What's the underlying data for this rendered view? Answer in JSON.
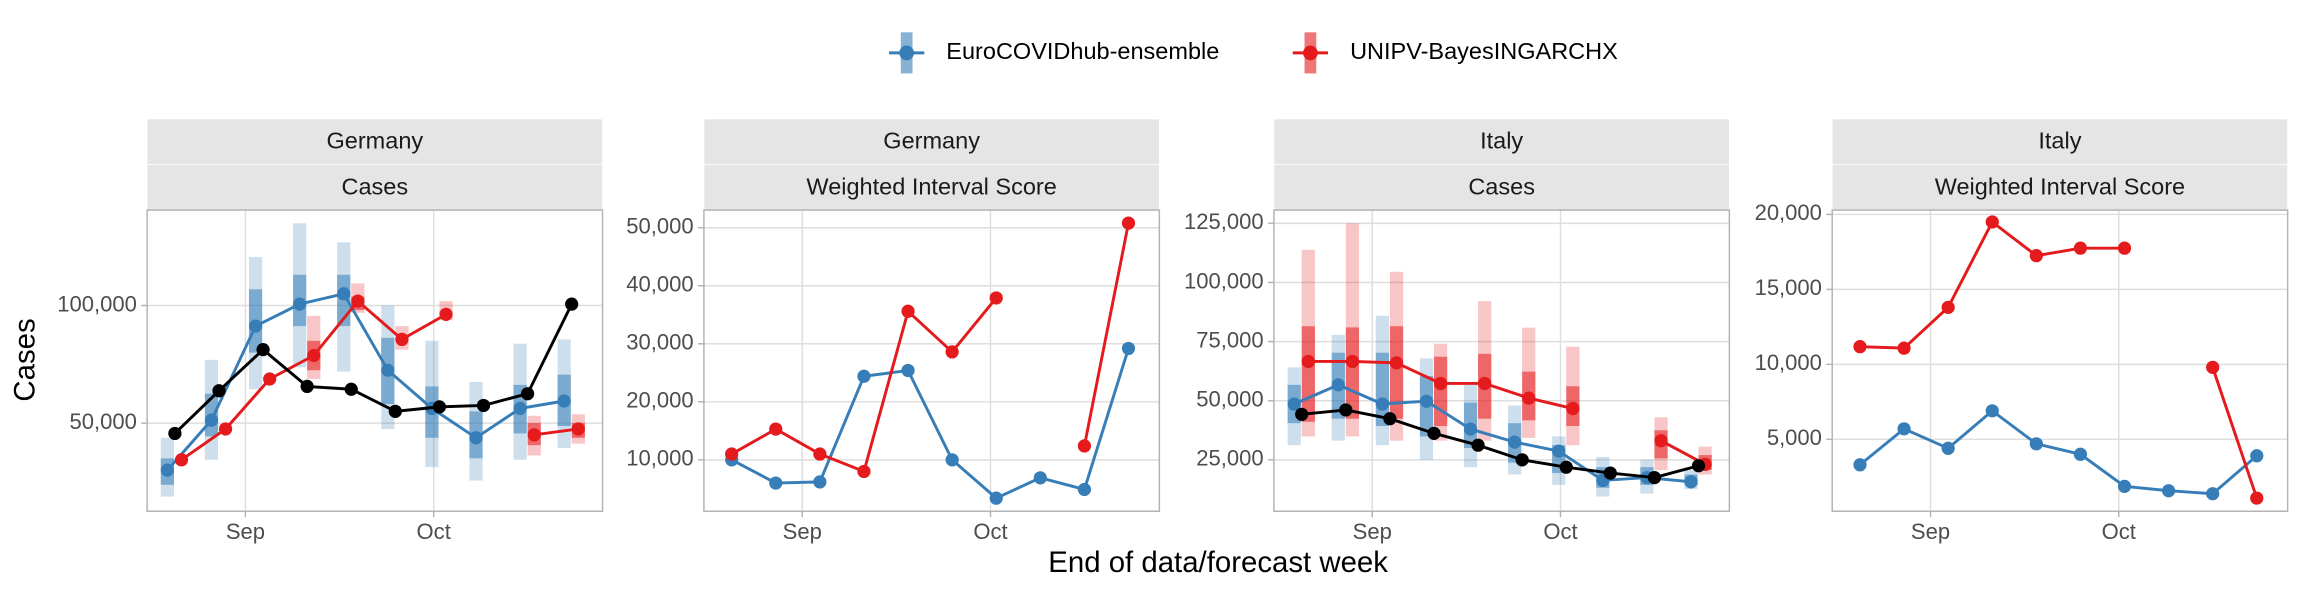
{
  "xlabel": "End of data/forecast week",
  "chart_data": [
    {
      "type": "line",
      "strip": [
        "Germany",
        "Cases"
      ],
      "ylabel": "Cases",
      "dodge": true,
      "grid": true,
      "categories": [
        null,
        null,
        null,
        null,
        null,
        null,
        null,
        null,
        null,
        null
      ],
      "xlim": [
        -0.63,
        9.7
      ],
      "xticks": [
        {
          "value": 1.6,
          "label": "Sep"
        },
        {
          "value": 5.87,
          "label": "Oct"
        }
      ],
      "ylim": [
        12500,
        140600
      ],
      "yticks": [
        {
          "value": 50000,
          "label": "50,000"
        },
        {
          "value": 100000,
          "label": "100,000"
        }
      ],
      "series": [
        {
          "name": "EuroCOVIDhub-ensemble",
          "color": "#377EB8",
          "values": [
            30000,
            51250,
            91250,
            100600,
            105000,
            72500,
            56250,
            43750,
            56250,
            59400
          ],
          "outer": [
            [
              18750,
              43750
            ],
            [
              34400,
              76900
            ],
            [
              64400,
              120600
            ],
            [
              73750,
              135000
            ],
            [
              71900,
              126900
            ],
            [
              47500,
              100000
            ],
            [
              31250,
              85000
            ],
            [
              25600,
              67500
            ],
            [
              34400,
              83750
            ],
            [
              39400,
              85600
            ]
          ],
          "inner": [
            [
              23750,
              35000
            ],
            [
              44400,
              62500
            ],
            [
              80000,
              106900
            ],
            [
              91250,
              113100
            ],
            [
              91250,
              113100
            ],
            [
              58100,
              86250
            ],
            [
              43750,
              65600
            ],
            [
              35000,
              55000
            ],
            [
              45600,
              66250
            ],
            [
              48750,
              70600
            ]
          ]
        },
        {
          "name": "UNIPV-BayesINGARCHX",
          "color": "#E41A1C",
          "values": [
            34400,
            47500,
            68750,
            78750,
            101900,
            85600,
            96250,
            null,
            45000,
            47500
          ],
          "outer": [
            null,
            null,
            null,
            [
              68750,
              95600
            ],
            [
              96900,
              109400
            ],
            [
              81250,
              91250
            ],
            [
              93750,
              101900
            ],
            null,
            [
              36250,
              53100
            ],
            [
              41250,
              53750
            ]
          ],
          "inner": [
            null,
            null,
            null,
            [
              72500,
              85000
            ],
            [
              98100,
              103800
            ],
            null,
            null,
            null,
            [
              40600,
              50000
            ],
            [
              43750,
              50000
            ]
          ]
        },
        {
          "color": "#000000",
          "values": [
            45600,
            63750,
            81250,
            65600,
            64400,
            55000,
            56900,
            57500,
            62500,
            100600
          ]
        }
      ]
    },
    {
      "type": "line",
      "strip": [
        "Germany",
        "Weighted Interval Score"
      ],
      "dodge": false,
      "grid": true,
      "categories": [
        null,
        null,
        null,
        null,
        null,
        null,
        null,
        null,
        null,
        null
      ],
      "xlim": [
        -0.63,
        9.7
      ],
      "xticks": [
        {
          "value": 1.6,
          "label": "Sep"
        },
        {
          "value": 5.87,
          "label": "Oct"
        }
      ],
      "ylim": [
        1140,
        53040
      ],
      "yticks": [
        {
          "value": 10000,
          "label": "10,000"
        },
        {
          "value": 20000,
          "label": "20,000"
        },
        {
          "value": 30000,
          "label": "30,000"
        },
        {
          "value": 40000,
          "label": "40,000"
        },
        {
          "value": 50000,
          "label": "50,000"
        }
      ],
      "series": [
        {
          "name": "EuroCOVIDhub-ensemble",
          "color": "#377EB8",
          "values": [
            10000,
            6000,
            6200,
            24400,
            25400,
            10000,
            3400,
            6900,
            4900,
            29200
          ]
        },
        {
          "name": "UNIPV-BayesINGARCHX",
          "color": "#E41A1C",
          "values": [
            11000,
            15300,
            11000,
            8000,
            35600,
            28600,
            37900,
            null,
            12400,
            50800
          ]
        }
      ]
    },
    {
      "type": "line",
      "strip": [
        "Italy",
        "Cases"
      ],
      "dodge": true,
      "grid": true,
      "categories": [
        null,
        null,
        null,
        null,
        null,
        null,
        null,
        null,
        null,
        null
      ],
      "xlim": [
        -0.63,
        9.7
      ],
      "xticks": [
        {
          "value": 1.6,
          "label": "Sep"
        },
        {
          "value": 5.87,
          "label": "Oct"
        }
      ],
      "ylim": [
        3260,
        130600
      ],
      "yticks": [
        {
          "value": 25000,
          "label": "25,000"
        },
        {
          "value": 50000,
          "label": "50,000"
        },
        {
          "value": 75000,
          "label": "75,000"
        },
        {
          "value": 100000,
          "label": "100,000"
        },
        {
          "value": 125000,
          "label": "125,000"
        }
      ],
      "series": [
        {
          "name": "EuroCOVIDhub-ensemble",
          "color": "#377EB8",
          "values": [
            48600,
            56700,
            48600,
            49800,
            38000,
            32500,
            28700,
            16300,
            17500,
            15700
          ],
          "outer": [
            [
              31200,
              64100
            ],
            [
              33100,
              77800
            ],
            [
              31200,
              85900
            ],
            [
              25000,
              67900
            ],
            [
              21900,
              56700
            ],
            [
              18800,
              48000
            ],
            [
              14400,
              34900
            ],
            [
              9500,
              26200
            ],
            [
              10700,
              25000
            ],
            [
              12600,
              20700
            ]
          ],
          "inner": [
            [
              40500,
              56700
            ],
            [
              42400,
              70300
            ],
            [
              39300,
              70300
            ],
            [
              34900,
              60400
            ],
            [
              30000,
              49200
            ],
            [
              23800,
              40500
            ],
            [
              19400,
              31200
            ],
            [
              13200,
              21900
            ],
            [
              14400,
              21900
            ],
            [
              14400,
              18800
            ]
          ]
        },
        {
          "name": "UNIPV-BayesINGARCHX",
          "color": "#E41A1C",
          "values": [
            66600,
            66600,
            66000,
            57300,
            57300,
            51100,
            46700,
            null,
            33100,
            23100
          ],
          "outer": [
            [
              34900,
              113800
            ],
            [
              34900,
              125000
            ],
            [
              33100,
              104500
            ],
            [
              33100,
              74100
            ],
            [
              33100,
              92100
            ],
            [
              34300,
              80900
            ],
            [
              31200,
              72800
            ],
            null,
            [
              20700,
              43000
            ],
            [
              18800,
              30600
            ]
          ],
          "inner": [
            [
              41100,
              81500
            ],
            [
              42400,
              81000
            ],
            [
              42400,
              81500
            ],
            [
              39300,
              68600
            ],
            [
              42400,
              69800
            ],
            [
              41700,
              62300
            ],
            [
              39300,
              56100
            ],
            null,
            [
              25600,
              37500
            ],
            [
              20700,
              27000
            ]
          ]
        },
        {
          "color": "#000000",
          "values": [
            44250,
            46100,
            42400,
            36200,
            31200,
            25000,
            21900,
            19400,
            17500,
            22500
          ]
        }
      ]
    },
    {
      "type": "line",
      "strip": [
        "Italy",
        "Weighted Interval Score"
      ],
      "dodge": false,
      "grid": true,
      "categories": [
        null,
        null,
        null,
        null,
        null,
        null,
        null,
        null,
        null,
        null
      ],
      "xlim": [
        -0.63,
        9.7
      ],
      "xticks": [
        {
          "value": 1.6,
          "label": "Sep"
        },
        {
          "value": 5.87,
          "label": "Oct"
        }
      ],
      "ylim": [
        200,
        20290
      ],
      "yticks": [
        {
          "value": 5000,
          "label": "5,000"
        },
        {
          "value": 10000,
          "label": "10,000"
        },
        {
          "value": 15000,
          "label": "15,000"
        },
        {
          "value": 20000,
          "label": "20,000"
        }
      ],
      "series": [
        {
          "name": "EuroCOVIDhub-ensemble",
          "color": "#377EB8",
          "values": [
            3300,
            5700,
            4400,
            6900,
            4700,
            4000,
            1860,
            1570,
            1370,
            3900
          ]
        },
        {
          "name": "UNIPV-BayesINGARCHX",
          "color": "#E41A1C",
          "values": [
            11180,
            11080,
            13800,
            19500,
            17250,
            17750,
            17750,
            null,
            9800,
            1080
          ]
        }
      ]
    }
  ]
}
